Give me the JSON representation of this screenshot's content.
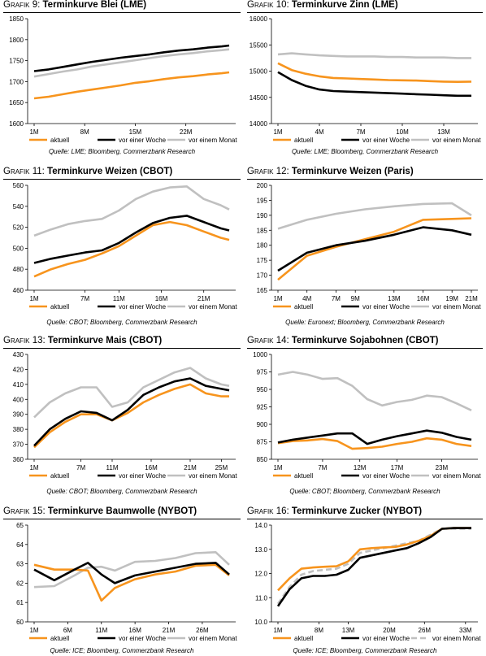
{
  "colors": {
    "aktuell": "#f7941d",
    "woche": "#000000",
    "monat": "#c0c0c0"
  },
  "legend_labels": {
    "aktuell": "aktuell",
    "woche": "vor einer Woche",
    "monat": "vor einem Monat"
  },
  "chart_data": [
    {
      "type": "line",
      "title_prefix": "Grafik 9:",
      "title": "Terminkurve Blei (LME)",
      "source": "Quelle: LME; Bloomberg, Commerzbank Research",
      "ylim": [
        1600,
        1850
      ],
      "yticks": [
        1600,
        1650,
        1700,
        1750,
        1800,
        1850
      ],
      "x_positions": [
        1,
        8,
        15,
        22
      ],
      "xtick_labels": [
        "1M",
        "8M",
        "15M",
        "22M"
      ],
      "x_range": [
        1,
        28
      ],
      "series": [
        {
          "name": "aktuell",
          "x": [
            1,
            3,
            5,
            7,
            9,
            11,
            13,
            15,
            17,
            19,
            21,
            23,
            25,
            27,
            28
          ],
          "values": [
            1660,
            1664,
            1670,
            1676,
            1681,
            1686,
            1691,
            1697,
            1701,
            1706,
            1710,
            1713,
            1717,
            1720,
            1722
          ]
        },
        {
          "name": "vor einer Woche",
          "x": [
            1,
            3,
            5,
            7,
            9,
            11,
            13,
            15,
            17,
            19,
            21,
            23,
            25,
            27,
            28
          ],
          "values": [
            1725,
            1729,
            1735,
            1741,
            1747,
            1752,
            1757,
            1761,
            1765,
            1770,
            1774,
            1777,
            1781,
            1784,
            1786
          ]
        },
        {
          "name": "vor einem Monat",
          "x": [
            1,
            3,
            5,
            7,
            9,
            11,
            13,
            15,
            17,
            19,
            21,
            23,
            25,
            27,
            28
          ],
          "values": [
            1712,
            1718,
            1724,
            1729,
            1736,
            1741,
            1746,
            1751,
            1756,
            1761,
            1765,
            1768,
            1772,
            1775,
            1777
          ]
        }
      ]
    },
    {
      "type": "line",
      "title_prefix": "Grafik 10:",
      "title": "Terminkurve Zinn (LME)",
      "source": "Quelle: LME; Bloomberg, Commerzbank Research",
      "ylim": [
        14000,
        16000
      ],
      "yticks": [
        14000,
        14500,
        15000,
        15500,
        16000
      ],
      "x_positions": [
        1,
        4,
        7,
        10,
        13
      ],
      "xtick_labels": [
        "1M",
        "4M",
        "7M",
        "10M",
        "13M"
      ],
      "x_range": [
        1,
        15
      ],
      "series": [
        {
          "name": "aktuell",
          "x": [
            1,
            2,
            3,
            4,
            5,
            6,
            7,
            8,
            9,
            10,
            11,
            12,
            13,
            14,
            15
          ],
          "values": [
            15150,
            15020,
            14950,
            14900,
            14870,
            14860,
            14850,
            14840,
            14830,
            14825,
            14820,
            14810,
            14800,
            14795,
            14800
          ]
        },
        {
          "name": "vor einer Woche",
          "x": [
            1,
            2,
            3,
            4,
            5,
            6,
            7,
            8,
            9,
            10,
            11,
            12,
            13,
            14,
            15
          ],
          "values": [
            14980,
            14830,
            14720,
            14650,
            14620,
            14610,
            14600,
            14590,
            14580,
            14570,
            14560,
            14550,
            14540,
            14530,
            14530
          ]
        },
        {
          "name": "vor einem Monat",
          "x": [
            1,
            2,
            3,
            4,
            5,
            6,
            7,
            8,
            9,
            10,
            11,
            12,
            13,
            14,
            15
          ],
          "values": [
            15320,
            15340,
            15320,
            15300,
            15290,
            15280,
            15280,
            15280,
            15270,
            15270,
            15260,
            15260,
            15260,
            15250,
            15250
          ]
        }
      ]
    },
    {
      "type": "line",
      "title_prefix": "Grafik 11:",
      "title": "Terminkurve Weizen (CBOT)",
      "source": "Quelle: CBOT; Bloomberg, Commerzbank Research",
      "ylim": [
        460,
        560
      ],
      "yticks": [
        460,
        480,
        500,
        520,
        540,
        560
      ],
      "x_positions": [
        1,
        7,
        11,
        16,
        21
      ],
      "xtick_labels": [
        "1M",
        "7M",
        "11M",
        "16M",
        "21M"
      ],
      "x_range": [
        1,
        24
      ],
      "series": [
        {
          "name": "aktuell",
          "x": [
            1,
            3,
            5,
            7,
            9,
            11,
            13,
            15,
            17,
            19,
            21,
            23,
            24
          ],
          "values": [
            473,
            480,
            485,
            489,
            495,
            502,
            512,
            522,
            525,
            522,
            516,
            510,
            508
          ]
        },
        {
          "name": "vor einer Woche",
          "x": [
            1,
            3,
            5,
            7,
            9,
            11,
            13,
            15,
            17,
            19,
            21,
            23,
            24
          ],
          "values": [
            486,
            490,
            493,
            496,
            498,
            505,
            515,
            524,
            529,
            531,
            525,
            519,
            517
          ]
        },
        {
          "name": "vor einem Monat",
          "x": [
            1,
            3,
            5,
            7,
            9,
            11,
            13,
            15,
            17,
            19,
            21,
            23,
            24
          ],
          "values": [
            512,
            518,
            523,
            526,
            528,
            536,
            547,
            554,
            558,
            559,
            547,
            541,
            537
          ]
        }
      ]
    },
    {
      "type": "line",
      "title_prefix": "Grafik 12:",
      "title": "Terminkurve Weizen (Paris)",
      "source": "Quelle: Euronext; Bloomberg, Commerzbank Research",
      "ylim": [
        165,
        200
      ],
      "yticks": [
        165,
        170,
        175,
        180,
        185,
        190,
        195,
        200
      ],
      "x_positions": [
        1,
        4,
        7,
        9,
        13,
        16,
        19,
        21
      ],
      "xtick_labels": [
        "1M",
        "4M",
        "7M",
        "9M",
        "13M",
        "16M",
        "19M",
        "21M"
      ],
      "x_range": [
        1,
        21
      ],
      "series": [
        {
          "name": "aktuell",
          "x": [
            1,
            4,
            7,
            10,
            13,
            16,
            19,
            21
          ],
          "values": [
            168.5,
            176.5,
            179.5,
            182,
            184.5,
            188.5,
            188.8,
            189
          ]
        },
        {
          "name": "vor einer Woche",
          "x": [
            1,
            4,
            7,
            10,
            13,
            16,
            19,
            21
          ],
          "values": [
            171.5,
            177.5,
            180,
            181.5,
            183.5,
            186,
            185,
            183.5
          ]
        },
        {
          "name": "vor einem Monat",
          "x": [
            1,
            4,
            7,
            10,
            13,
            16,
            19,
            21
          ],
          "values": [
            185.5,
            188.5,
            190.5,
            192,
            193,
            193.8,
            194,
            190
          ]
        }
      ]
    },
    {
      "type": "line",
      "title_prefix": "Grafik 13:",
      "title": "Terminkurve Mais (CBOT)",
      "source": "Quelle: CBOT; Bloomberg, Commerzbank Research",
      "ylim": [
        360,
        430
      ],
      "yticks": [
        360,
        370,
        380,
        390,
        400,
        410,
        420,
        430
      ],
      "x_positions": [
        1,
        7,
        11,
        16,
        21,
        25
      ],
      "xtick_labels": [
        "1M",
        "7M",
        "11M",
        "16M",
        "21M",
        "25M"
      ],
      "x_range": [
        1,
        26
      ],
      "series": [
        {
          "name": "aktuell",
          "x": [
            1,
            3,
            5,
            7,
            9,
            11,
            13,
            15,
            17,
            19,
            21,
            23,
            25,
            26
          ],
          "values": [
            368,
            378,
            385,
            390,
            390,
            386,
            391,
            398,
            403,
            407,
            410,
            404,
            402,
            402
          ]
        },
        {
          "name": "vor einer Woche",
          "x": [
            1,
            3,
            5,
            7,
            9,
            11,
            13,
            15,
            17,
            19,
            21,
            23,
            25,
            26
          ],
          "values": [
            369,
            380,
            387,
            392,
            391,
            386,
            393,
            403,
            408,
            412,
            414,
            409,
            407,
            406
          ]
        },
        {
          "name": "vor einem Monat",
          "x": [
            1,
            3,
            5,
            7,
            9,
            11,
            13,
            15,
            17,
            19,
            21,
            23,
            25,
            26
          ],
          "values": [
            388,
            398,
            404,
            408,
            408,
            395,
            398,
            408,
            413,
            418,
            421,
            414,
            410,
            409
          ]
        }
      ]
    },
    {
      "type": "line",
      "title_prefix": "Grafik 14:",
      "title": "Terminkurve Sojabohnen (CBOT)",
      "source": "Quelle: CBOT; Bloomberg, Commerzbank Research",
      "ylim": [
        850,
        1000
      ],
      "yticks": [
        850,
        875,
        900,
        925,
        950,
        975,
        1000
      ],
      "x_positions": [
        1,
        7,
        12,
        17,
        23
      ],
      "xtick_labels": [
        "1M",
        "7M",
        "12M",
        "17M",
        "23M"
      ],
      "x_range": [
        1,
        27
      ],
      "series": [
        {
          "name": "aktuell",
          "x": [
            1,
            3,
            5,
            7,
            9,
            11,
            13,
            15,
            17,
            19,
            21,
            23,
            25,
            27
          ],
          "values": [
            873,
            876,
            877,
            879,
            876,
            865,
            866,
            868,
            872,
            875,
            880,
            878,
            872,
            869
          ]
        },
        {
          "name": "vor einer Woche",
          "x": [
            1,
            3,
            5,
            7,
            9,
            11,
            13,
            15,
            17,
            19,
            21,
            23,
            25,
            27
          ],
          "values": [
            874,
            878,
            881,
            884,
            887,
            887,
            872,
            878,
            883,
            887,
            891,
            888,
            882,
            878
          ]
        },
        {
          "name": "vor einem Monat",
          "x": [
            1,
            3,
            5,
            7,
            9,
            11,
            13,
            15,
            17,
            19,
            21,
            23,
            25,
            27
          ],
          "values": [
            971,
            975,
            971,
            965,
            966,
            955,
            936,
            927,
            932,
            935,
            941,
            939,
            930,
            920
          ]
        }
      ]
    },
    {
      "type": "line",
      "title_prefix": "Grafik 15:",
      "title": "Terminkurve Baumwolle (NYBOT)",
      "source": "Quelle: ICE; Bloomberg, Commerzbank Research",
      "ylim": [
        60,
        65
      ],
      "yticks": [
        60,
        61,
        62,
        63,
        64,
        65
      ],
      "x_positions": [
        1,
        6,
        11,
        16,
        21,
        26
      ],
      "xtick_labels": [
        "1M",
        "6M",
        "11M",
        "16M",
        "21M",
        "26M"
      ],
      "x_range": [
        1,
        30
      ],
      "series": [
        {
          "name": "aktuell",
          "x": [
            1,
            4,
            7,
            9,
            11,
            13,
            16,
            19,
            22,
            25,
            28,
            30
          ],
          "values": [
            62.95,
            62.7,
            62.7,
            62.65,
            61.1,
            61.75,
            62.2,
            62.45,
            62.6,
            62.9,
            62.95,
            62.4
          ]
        },
        {
          "name": "vor einer Woche",
          "x": [
            1,
            4,
            7,
            9,
            11,
            13,
            16,
            19,
            22,
            25,
            28,
            30
          ],
          "values": [
            62.7,
            62.15,
            62.7,
            63.05,
            62.45,
            62.0,
            62.4,
            62.6,
            62.8,
            63.0,
            63.05,
            62.45
          ]
        },
        {
          "name": "vor einem Monat",
          "x": [
            1,
            4,
            7,
            9,
            11,
            13,
            16,
            19,
            22,
            25,
            28,
            30
          ],
          "values": [
            61.8,
            61.85,
            62.4,
            62.8,
            62.85,
            62.65,
            63.1,
            63.15,
            63.3,
            63.55,
            63.6,
            62.95
          ]
        }
      ]
    },
    {
      "type": "line",
      "title_prefix": "Grafik 16:",
      "title": "Terminkurve Zucker (NYBOT)",
      "source": "Quelle: ICE; Bloomberg, Commerzbank Research",
      "ylim": [
        10,
        14
      ],
      "yticks": [
        10.0,
        11.0,
        12.0,
        13.0,
        14.0
      ],
      "ytick_decimals": 1,
      "x_positions": [
        1,
        8,
        13,
        20,
        26,
        33
      ],
      "xtick_labels": [
        "1M",
        "8M",
        "13M",
        "20M",
        "26M",
        "33M"
      ],
      "x_range": [
        1,
        34
      ],
      "series": [
        {
          "name": "aktuell",
          "x": [
            1,
            3,
            5,
            7,
            9,
            11,
            13,
            15,
            17,
            19,
            21,
            23,
            25,
            27,
            29,
            31,
            33,
            34
          ],
          "values": [
            11.3,
            11.8,
            12.2,
            12.25,
            12.28,
            12.3,
            12.5,
            13.0,
            13.05,
            13.08,
            13.1,
            13.2,
            13.35,
            13.55,
            13.85,
            13.88,
            13.88,
            13.88
          ]
        },
        {
          "name": "vor einer Woche",
          "x": [
            1,
            3,
            5,
            7,
            9,
            11,
            13,
            15,
            17,
            19,
            21,
            23,
            25,
            27,
            29,
            31,
            33,
            34
          ],
          "values": [
            10.65,
            11.35,
            11.8,
            11.9,
            11.9,
            11.95,
            12.15,
            12.65,
            12.75,
            12.85,
            12.95,
            13.05,
            13.25,
            13.5,
            13.85,
            13.88,
            13.88,
            13.88
          ]
        },
        {
          "name": "vor einem Monat",
          "x": [
            1,
            3,
            5,
            7,
            9,
            11,
            13,
            15,
            17,
            19,
            21,
            23,
            25,
            27,
            29,
            31,
            33,
            34
          ],
          "values": [
            10.75,
            11.45,
            11.95,
            12.1,
            12.15,
            12.2,
            12.4,
            12.85,
            12.95,
            13.05,
            13.15,
            13.25,
            13.35,
            13.6,
            13.85,
            13.85,
            13.85,
            13.85
          ]
        }
      ]
    }
  ]
}
